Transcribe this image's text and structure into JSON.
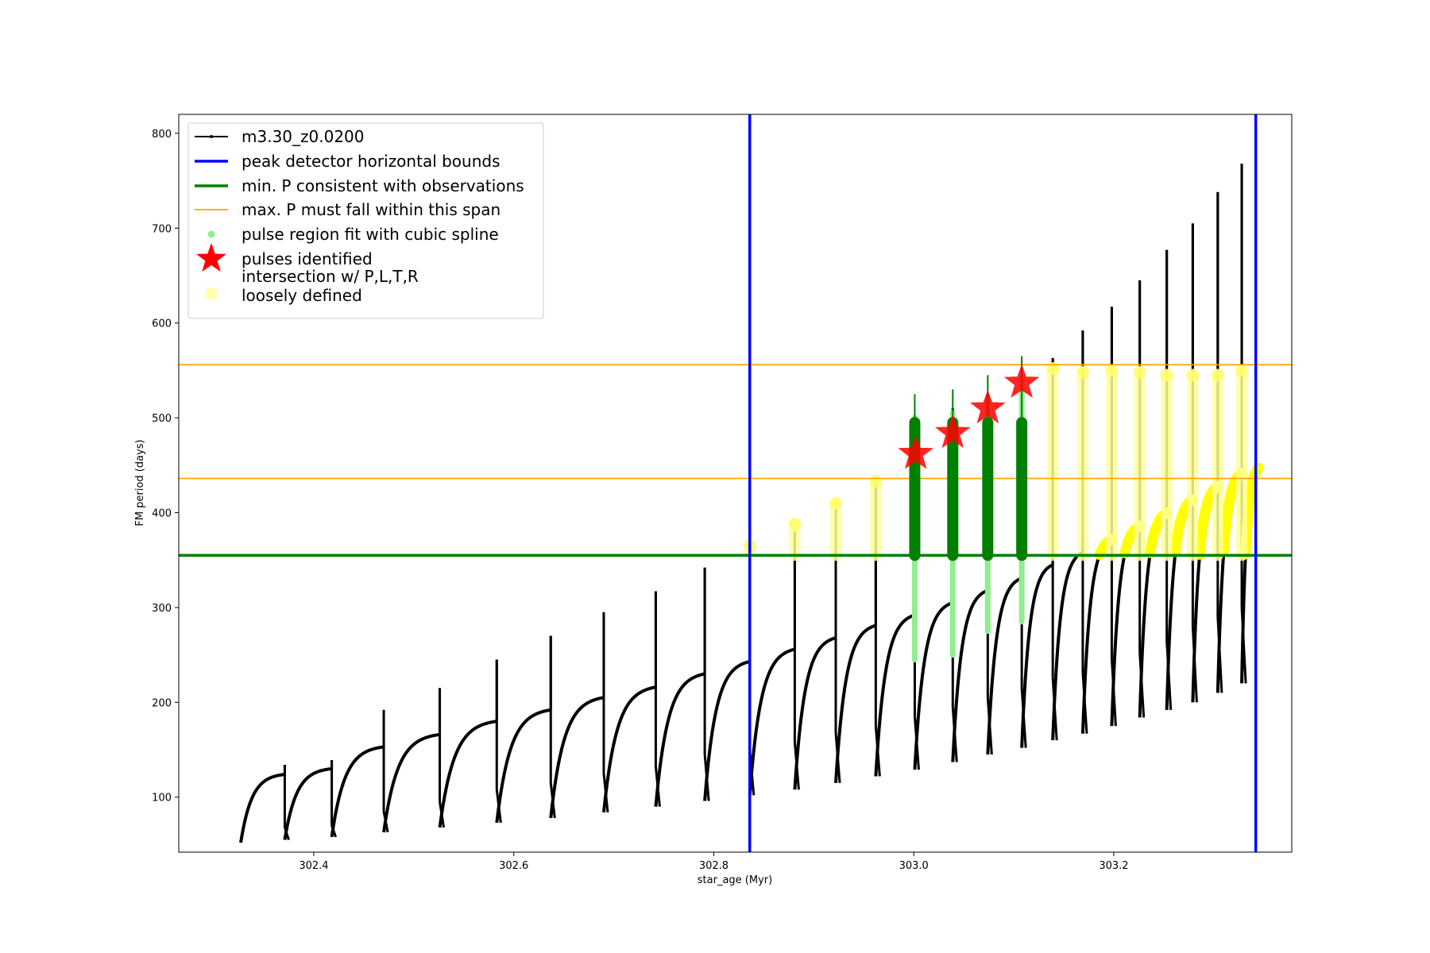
{
  "chart_data": {
    "type": "line",
    "xlabel": "star_age (Myr)",
    "ylabel": "FM period (days)",
    "xlim": [
      302.265,
      303.378
    ],
    "ylim": [
      42,
      820
    ],
    "xticks": [
      302.4,
      302.6,
      302.8,
      303.0,
      303.2
    ],
    "xtick_labels": [
      "302.4",
      "302.6",
      "302.8",
      "303.0",
      "303.2"
    ],
    "yticks": [
      100,
      200,
      300,
      400,
      500,
      600,
      700,
      800
    ],
    "ytick_labels": [
      "100",
      "200",
      "300",
      "400",
      "500",
      "600",
      "700",
      "800"
    ],
    "legend_position": "top-left",
    "legend": [
      {
        "label": "m3.30_z0.0200",
        "kind": "line-marker",
        "color": "#000000"
      },
      {
        "label": "peak detector horizontal bounds",
        "kind": "line",
        "color": "#0000ff"
      },
      {
        "label": "min. P consistent with observations",
        "kind": "line",
        "color": "#008000"
      },
      {
        "label": "max. P must fall within this span",
        "kind": "line",
        "color": "#ffa500"
      },
      {
        "label": "pulse region fit with cubic spline",
        "kind": "dot",
        "color": "#90ee90"
      },
      {
        "label": "pulses identified",
        "kind": "star",
        "color": "#ff0000"
      },
      {
        "label": "intersection w/ P,L,T,R\nloosely defined",
        "kind": "circle",
        "color": "#ffff99"
      }
    ],
    "reference_lines": {
      "vertical_blue": [
        302.836,
        303.342
      ],
      "horizontal_green": 355,
      "horizontal_orange": [
        436,
        556
      ]
    },
    "series": [
      {
        "name": "m3.30_z0.0200",
        "color": "#000000",
        "cycles": [
          {
            "start": 302.327,
            "end": 302.371,
            "min": 52,
            "max": 124,
            "spike": 134,
            "dip": 68
          },
          {
            "start": 302.371,
            "end": 302.418,
            "min": 55,
            "max": 130,
            "spike": 139,
            "dip": 70
          },
          {
            "start": 302.418,
            "end": 302.47,
            "min": 58,
            "max": 153,
            "spike": 192,
            "dip": 85
          },
          {
            "start": 302.47,
            "end": 302.526,
            "min": 63,
            "max": 166,
            "spike": 215,
            "dip": 95
          },
          {
            "start": 302.526,
            "end": 302.583,
            "min": 68,
            "max": 180,
            "spike": 245,
            "dip": 108
          },
          {
            "start": 302.583,
            "end": 302.637,
            "min": 73,
            "max": 192,
            "spike": 270,
            "dip": 115
          },
          {
            "start": 302.637,
            "end": 302.69,
            "min": 78,
            "max": 205,
            "spike": 295,
            "dip": 125
          },
          {
            "start": 302.69,
            "end": 302.742,
            "min": 84,
            "max": 216,
            "spike": 317,
            "dip": 132
          },
          {
            "start": 302.742,
            "end": 302.791,
            "min": 90,
            "max": 230,
            "spike": 342,
            "dip": 145
          },
          {
            "start": 302.791,
            "end": 302.836,
            "min": 96,
            "max": 243,
            "spike": 355,
            "dip": 150
          },
          {
            "start": 302.836,
            "end": 302.881,
            "min": 102,
            "max": 256,
            "spike": 380,
            "dip": 158
          },
          {
            "start": 302.881,
            "end": 302.922,
            "min": 108,
            "max": 268,
            "spike": 410,
            "dip": 168
          },
          {
            "start": 302.922,
            "end": 302.962,
            "min": 115,
            "max": 281,
            "spike": 433,
            "dip": 175
          },
          {
            "start": 302.962,
            "end": 303.001,
            "min": 122,
            "max": 292,
            "spike": 500,
            "dip": 185
          },
          {
            "start": 303.001,
            "end": 303.039,
            "min": 129,
            "max": 305,
            "spike": 510,
            "dip": 195
          },
          {
            "start": 303.039,
            "end": 303.074,
            "min": 137,
            "max": 318,
            "spike": 525,
            "dip": 205
          },
          {
            "start": 303.074,
            "end": 303.108,
            "min": 145,
            "max": 331,
            "spike": 540,
            "dip": 215
          },
          {
            "start": 303.108,
            "end": 303.139,
            "min": 152,
            "max": 345,
            "spike": 563,
            "dip": 226
          },
          {
            "start": 303.139,
            "end": 303.169,
            "min": 160,
            "max": 358,
            "spike": 592,
            "dip": 232
          },
          {
            "start": 303.169,
            "end": 303.198,
            "min": 167,
            "max": 372,
            "spike": 617,
            "dip": 246
          },
          {
            "start": 303.198,
            "end": 303.226,
            "min": 175,
            "max": 386,
            "spike": 645,
            "dip": 252
          },
          {
            "start": 303.226,
            "end": 303.253,
            "min": 184,
            "max": 400,
            "spike": 677,
            "dip": 265
          },
          {
            "start": 303.253,
            "end": 303.279,
            "min": 192,
            "max": 414,
            "spike": 705,
            "dip": 280
          },
          {
            "start": 303.279,
            "end": 303.304,
            "min": 200,
            "max": 428,
            "spike": 738,
            "dip": 290
          },
          {
            "start": 303.304,
            "end": 303.328,
            "min": 210,
            "max": 442,
            "spike": 768,
            "dip": 300
          },
          {
            "start": 303.328,
            "end": 303.345,
            "min": 220,
            "max": 447,
            "spike": null,
            "dip": null
          }
        ]
      },
      {
        "name": "pulse region fit with cubic spline",
        "color": "#90ee90",
        "segments": [
          {
            "x": 303.001,
            "y_min": 245,
            "y_max": 500
          },
          {
            "x": 303.039,
            "y_min": 250,
            "y_max": 505
          },
          {
            "x": 303.074,
            "y_min": 275,
            "y_max": 520
          },
          {
            "x": 303.108,
            "y_min": 285,
            "y_max": 540
          }
        ]
      },
      {
        "name": "pulses identified",
        "color": "#ff0000",
        "points": [
          {
            "x": 303.002,
            "y": 462
          },
          {
            "x": 303.039,
            "y": 484
          },
          {
            "x": 303.074,
            "y": 510
          },
          {
            "x": 303.108,
            "y": 537
          }
        ]
      },
      {
        "name": "intersection w/ P,L,T,R\nloosely defined",
        "color": "#ffff99",
        "segments": [
          {
            "x": 302.836,
            "y_min": 355,
            "y_max": 365
          },
          {
            "x": 302.881,
            "y_min": 355,
            "y_max": 388
          },
          {
            "x": 302.922,
            "y_min": 355,
            "y_max": 410
          },
          {
            "x": 302.962,
            "y_min": 355,
            "y_max": 433
          },
          {
            "x": 303.139,
            "y_min": 355,
            "y_max": 552
          },
          {
            "x": 303.169,
            "y_min": 355,
            "y_max": 548
          },
          {
            "x": 303.198,
            "y_min": 355,
            "y_max": 550
          },
          {
            "x": 303.226,
            "y_min": 355,
            "y_max": 548
          },
          {
            "x": 303.253,
            "y_min": 355,
            "y_max": 545
          },
          {
            "x": 303.279,
            "y_min": 355,
            "y_max": 545
          },
          {
            "x": 303.304,
            "y_min": 355,
            "y_max": 545
          },
          {
            "x": 303.328,
            "y_min": 355,
            "y_max": 550
          }
        ]
      }
    ]
  }
}
